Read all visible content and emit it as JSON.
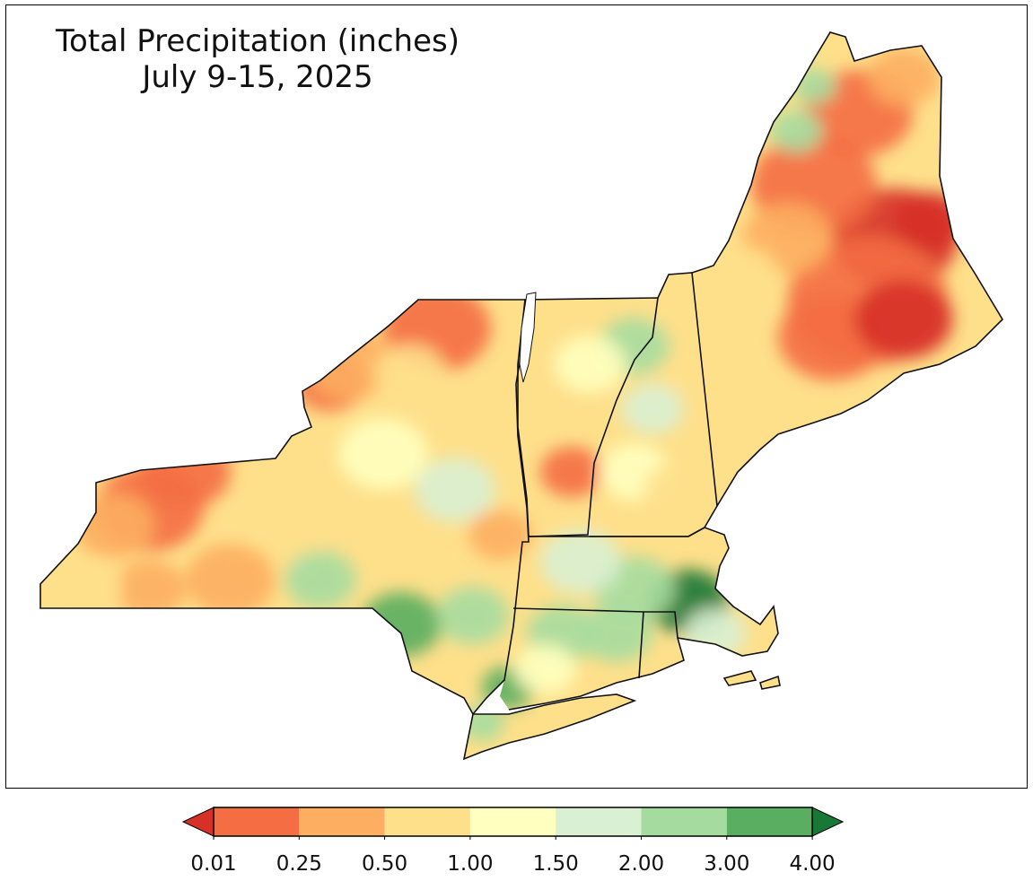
{
  "map": {
    "title_line1": "Total Precipitation (inches)",
    "title_line2": "July 9-15, 2025"
  },
  "colorbar": {
    "ticks": [
      "0.01",
      "0.25",
      "0.50",
      "1.00",
      "1.50",
      "2.00",
      "3.00",
      "4.00"
    ],
    "under_color": "#d73027",
    "over_color": "#1a7837",
    "colors": [
      "#f46d43",
      "#fdae61",
      "#fee08b",
      "#ffffbf",
      "#d9f0d3",
      "#a6dba0",
      "#5aae61"
    ]
  }
}
